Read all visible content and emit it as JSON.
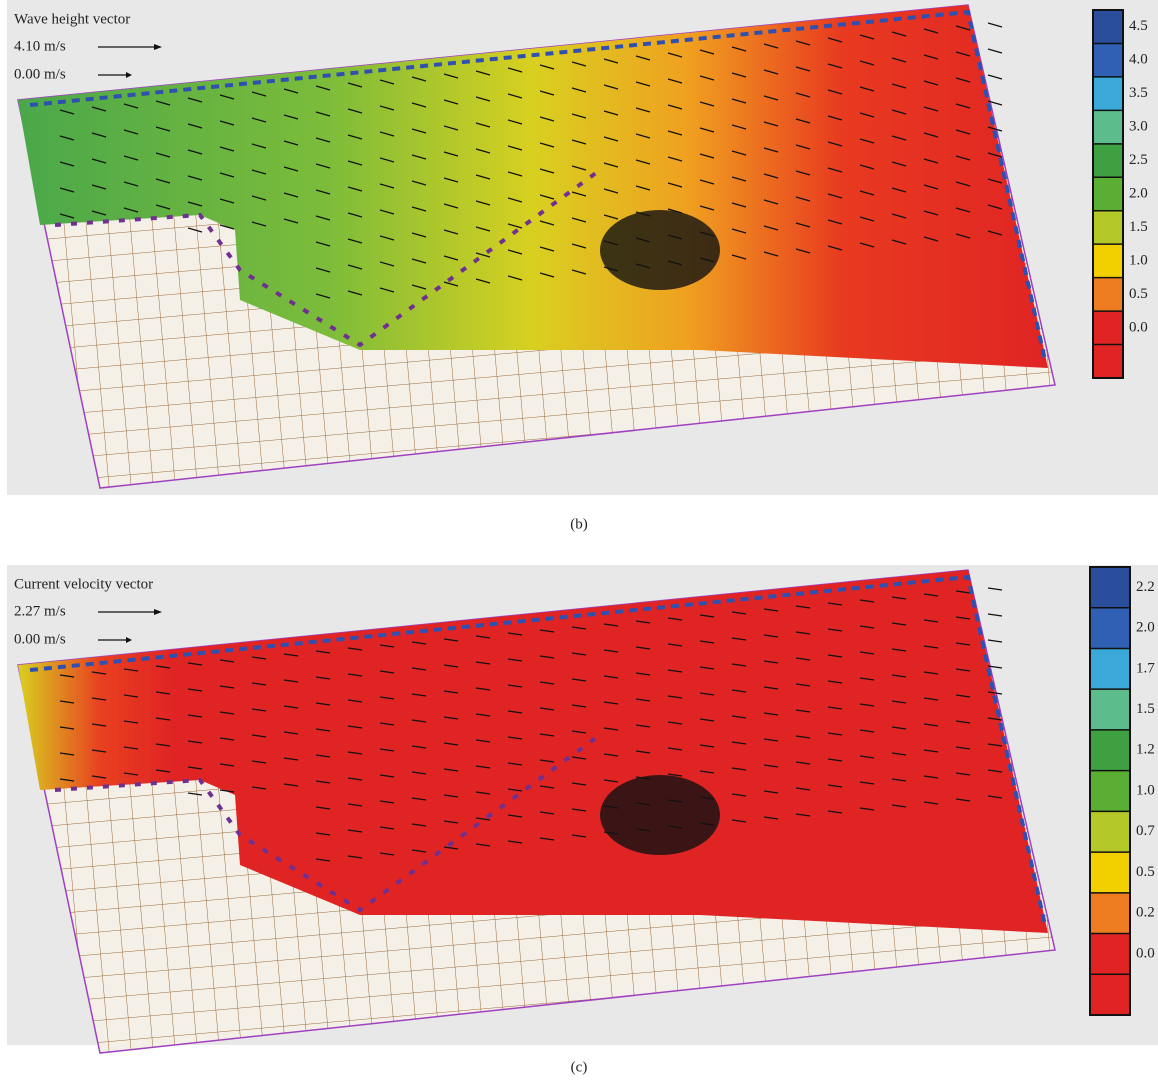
{
  "panels": [
    {
      "vector_title": "Wave height vector",
      "vector_scales": [
        "4.10 m/s",
        "0.00 m/s"
      ],
      "caption": "(b)",
      "colorbar": {
        "labels": [
          "4.5",
          "4.0",
          "3.5",
          "3.0",
          "2.5",
          "2.0",
          "1.5",
          "1.0",
          "0.5",
          "0.0"
        ],
        "colors": [
          "#2a4d9c",
          "#3060b4",
          "#3aa8d8",
          "#5cbc8c",
          "#3ea040",
          "#5aae34",
          "#b4c828",
          "#f2d000",
          "#ee7c20",
          "#e02424",
          "#e02424"
        ]
      }
    },
    {
      "vector_title": "Current velocity vector",
      "vector_scales": [
        "2.27 m/s",
        "0.00 m/s"
      ],
      "caption": "(c)",
      "colorbar": {
        "labels": [
          "2.2",
          "2.0",
          "1.7",
          "1.5",
          "1.2",
          "1.0",
          "0.7",
          "0.5",
          "0.2",
          "0.0"
        ],
        "colors": [
          "#2a4d9c",
          "#3060b4",
          "#3aa8d8",
          "#5cbc8c",
          "#3ea040",
          "#5aae34",
          "#b4c828",
          "#f2d000",
          "#ee7c20",
          "#e02424",
          "#e02424"
        ]
      }
    }
  ]
}
